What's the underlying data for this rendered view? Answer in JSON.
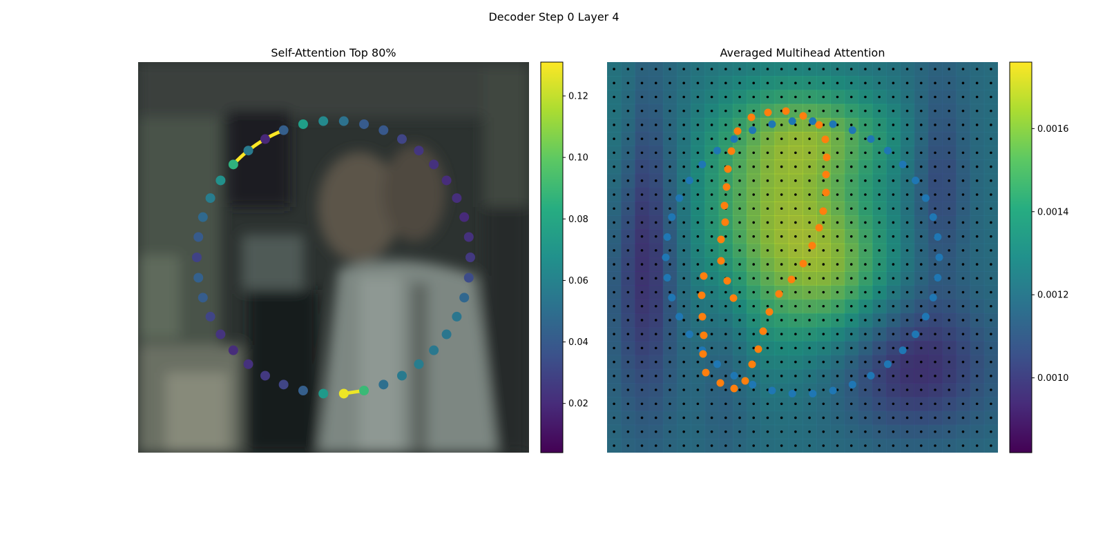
{
  "figure": {
    "title": "Decoder Step 0 Layer 4"
  },
  "chart_data": [
    {
      "type": "scatter",
      "title": "Self-Attention Top 80%",
      "background": "blurred photograph (dark room, person in white shirt)",
      "axes_visible": false,
      "colormap": "viridis",
      "colorbar": {
        "vmin": 0.004,
        "vmax": 0.131,
        "ticks": [
          0.02,
          0.04,
          0.06,
          0.08,
          0.1,
          0.12
        ],
        "tick_labels": [
          "0.02",
          "0.04",
          "0.06",
          "0.08",
          "0.10",
          "0.12"
        ]
      },
      "point_values": [
        0.029,
        0.04,
        0.047,
        0.058,
        0.068,
        0.085,
        0.056,
        0.018,
        0.042,
        0.075,
        0.064,
        0.052,
        0.04,
        0.039,
        0.03,
        0.024,
        0.022,
        0.02,
        0.021,
        0.019,
        0.022,
        0.025,
        0.033,
        0.046,
        0.054,
        0.054,
        0.055,
        0.058,
        0.056,
        0.05,
        0.09,
        0.128,
        0.072,
        0.042,
        0.03,
        0.025,
        0.022,
        0.02,
        0.023,
        0.03,
        0.041,
        0.043
      ],
      "attention_links": [
        {
          "from": 5,
          "to": 8,
          "weight": 0.131
        },
        {
          "from": 30,
          "to": 31,
          "weight": 0.128
        }
      ]
    },
    {
      "type": "heatmap",
      "title": "Averaged Multihead Attention",
      "overlay": "attention heatmap over blurred photograph",
      "axes_visible": false,
      "colormap": "viridis",
      "colorbar": {
        "vmin": 0.00082,
        "vmax": 0.00176,
        "ticks": [
          0.001,
          0.0012,
          0.0014,
          0.0016
        ],
        "tick_labels": [
          "0.0010",
          "0.0012",
          "0.0014",
          "0.0016"
        ]
      },
      "grid_points": {
        "rows": 28,
        "cols": 28,
        "color": "#000000"
      },
      "series": [
        {
          "color": "#1f77b4",
          "shape": "circle contour"
        },
        {
          "color": "#ff7f0e",
          "shape": "inner contour"
        }
      ]
    }
  ]
}
